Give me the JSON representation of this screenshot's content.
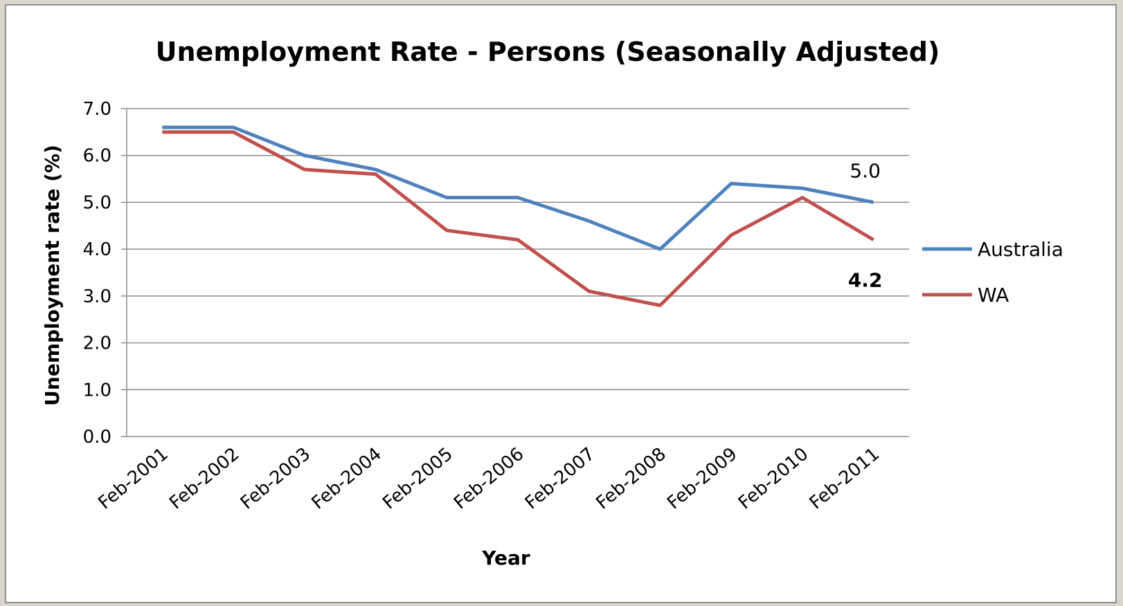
{
  "chart_data": {
    "type": "line",
    "title": "Unemployment Rate - Persons (Seasonally Adjusted)",
    "xlabel": "Year",
    "ylabel": "Unemployment rate (%)",
    "ylim": [
      0,
      7
    ],
    "yticks": [
      "0.0",
      "1.0",
      "2.0",
      "3.0",
      "4.0",
      "5.0",
      "6.0",
      "7.0"
    ],
    "grid": true,
    "legend_position": "right",
    "categories": [
      "Feb-2001",
      "Feb-2002",
      "Feb-2003",
      "Feb-2004",
      "Feb-2005",
      "Feb-2006",
      "Feb-2007",
      "Feb-2008",
      "Feb-2009",
      "Feb-2010",
      "Feb-2011"
    ],
    "series": [
      {
        "name": "Australia",
        "color": "#4f81bd",
        "values": [
          6.6,
          6.6,
          6.0,
          5.7,
          5.1,
          5.1,
          4.6,
          4.0,
          5.4,
          5.3,
          5.0
        ]
      },
      {
        "name": "WA",
        "color": "#c0504d",
        "values": [
          6.5,
          6.5,
          5.7,
          5.6,
          4.4,
          4.2,
          3.1,
          2.8,
          4.3,
          5.1,
          4.2
        ]
      }
    ],
    "data_labels": [
      {
        "text": "5.0",
        "series": 0,
        "index": 10,
        "bold": false
      },
      {
        "text": "4.2",
        "series": 1,
        "index": 10,
        "bold": true
      }
    ]
  }
}
